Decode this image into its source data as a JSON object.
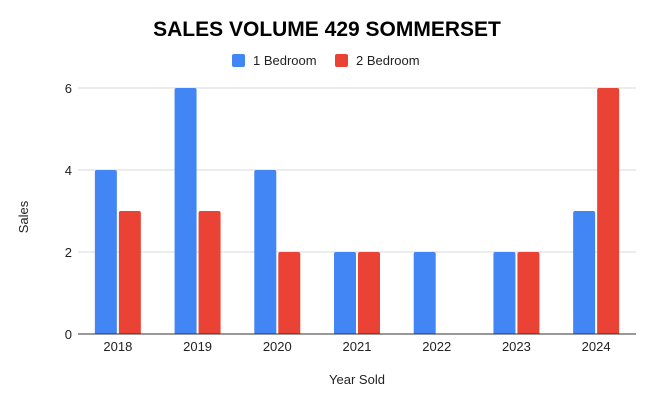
{
  "chart_data": {
    "type": "bar",
    "title": "SALES VOLUME 429 SOMMERSET",
    "xlabel": "Year Sold",
    "ylabel": "Sales",
    "categories": [
      "2018",
      "2019",
      "2020",
      "2021",
      "2022",
      "2023",
      "2024"
    ],
    "series": [
      {
        "name": "1 Bedroom",
        "color": "#4285f4",
        "values": [
          4,
          6,
          4,
          2,
          2,
          2,
          3
        ]
      },
      {
        "name": "2 Bedroom",
        "color": "#ea4335",
        "values": [
          3,
          3,
          2,
          2,
          0,
          2,
          6
        ]
      }
    ],
    "ylim": [
      0,
      6
    ],
    "yticks": [
      "0",
      "2",
      "4",
      "6"
    ],
    "grid": true,
    "legend": "top-center"
  }
}
